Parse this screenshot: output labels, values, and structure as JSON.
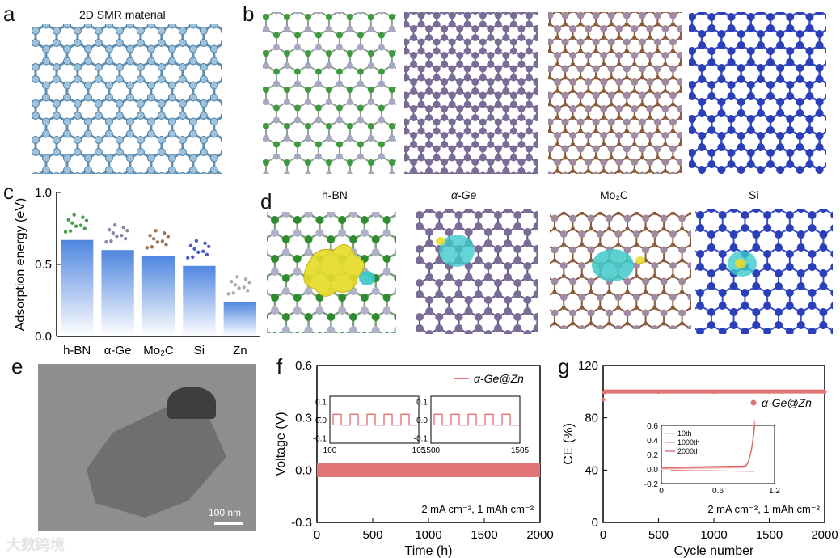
{
  "panels": {
    "a": {
      "label": "a",
      "title": "2D SMR material"
    },
    "b": {
      "label": "b"
    },
    "c": {
      "label": "c"
    },
    "d": {
      "label": "d",
      "titles": [
        "h-BN",
        "α-Ge",
        "Mo₂C",
        "Si"
      ]
    },
    "e": {
      "label": "e",
      "scalebar": "100 nm"
    },
    "f": {
      "label": "f",
      "legend": "α-Ge@Zn",
      "note": "2 mA cm⁻², 1 mAh cm⁻²",
      "inset1_x": [
        "100",
        "105"
      ],
      "inset2_x": [
        "1500",
        "1505"
      ],
      "inset_y": [
        "0.1",
        "0.0",
        "-0.1"
      ]
    },
    "g": {
      "label": "g",
      "legend": "α-Ge@Zn",
      "note": "2 mA cm⁻², 1 mAh cm⁻²",
      "inset_legend": [
        "10th",
        "1000th",
        "2000th"
      ]
    }
  },
  "colors": {
    "boron": "#2e8b2e",
    "nitrogen": "#9c9cb5",
    "germanium": "#75668f",
    "mo": "#8a5a3c",
    "si": "#2b3fa8",
    "bond": "#6e8fa8",
    "bar": "#4f86e0",
    "curve": "#e27474"
  },
  "watermark": "大数跨境",
  "chart_data": [
    {
      "type": "bar",
      "categories": [
        "h-BN",
        "α-Ge",
        "Mo₂C",
        "Si",
        "Zn"
      ],
      "values": [
        0.67,
        0.6,
        0.56,
        0.49,
        0.24
      ],
      "ylabel": "Adsorption energy (eV)",
      "ylim": [
        0,
        1.0
      ],
      "yticks": [
        "0.0",
        "0.5",
        "1.0"
      ]
    },
    {
      "type": "line",
      "series": [
        {
          "name": "α-Ge@Zn",
          "x": [
            0,
            2000
          ],
          "y": [
            0.0,
            0.0
          ]
        }
      ],
      "xlabel": "Time (h)",
      "ylabel": "Voltage (V)",
      "xlim": [
        0,
        2000
      ],
      "ylim": [
        -0.3,
        0.6
      ],
      "xticks": [
        "0",
        "500",
        "1000",
        "1500",
        "2000"
      ],
      "yticks": [
        "-0.3",
        "0.0",
        "0.3",
        "0.6"
      ]
    },
    {
      "type": "scatter",
      "series": [
        {
          "name": "α-Ge@Zn",
          "x": [
            0,
            10,
            500,
            1000,
            1500,
            2000
          ],
          "y": [
            94,
            99.5,
            99.8,
            99.8,
            99.8,
            99.8
          ]
        }
      ],
      "xlabel": "Cycle number",
      "ylabel": "CE (%)",
      "xlim": [
        0,
        2000
      ],
      "ylim": [
        0,
        120
      ],
      "xticks": [
        "0",
        "500",
        "1000",
        "1500",
        "2000"
      ],
      "yticks": [
        "0",
        "40",
        "80",
        "120"
      ],
      "inset": {
        "xticks": [
          "0",
          "0.6",
          "1.2"
        ],
        "yticks": [
          "-0.2",
          "0.0",
          "0.2",
          "0.4",
          "0.6"
        ]
      }
    }
  ]
}
